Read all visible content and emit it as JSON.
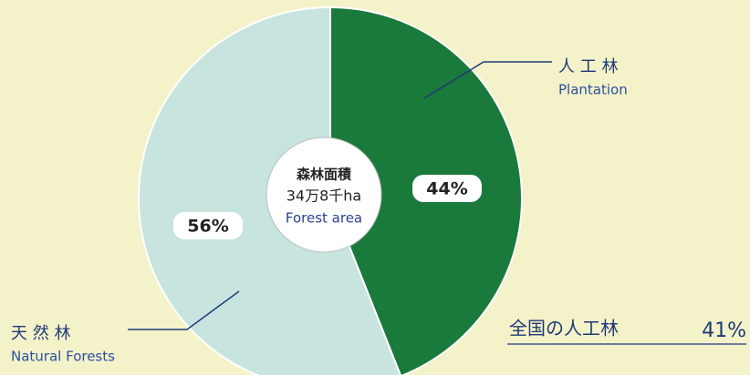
{
  "chart_data": {
    "type": "pie",
    "categories": [
      "人 工 林",
      "天 然 林"
    ],
    "category_labels_en": [
      "Plantation",
      "Natural Forests"
    ],
    "values": [
      44,
      56
    ],
    "value_labels": [
      "44%",
      "56%"
    ],
    "colors": [
      "#1a7a3c",
      "#c7e4df"
    ],
    "center_label": [
      "森林面積",
      "34万8千ha",
      "Forest area"
    ],
    "note": {
      "text": "全国の人工林",
      "value_label": "41%"
    }
  }
}
